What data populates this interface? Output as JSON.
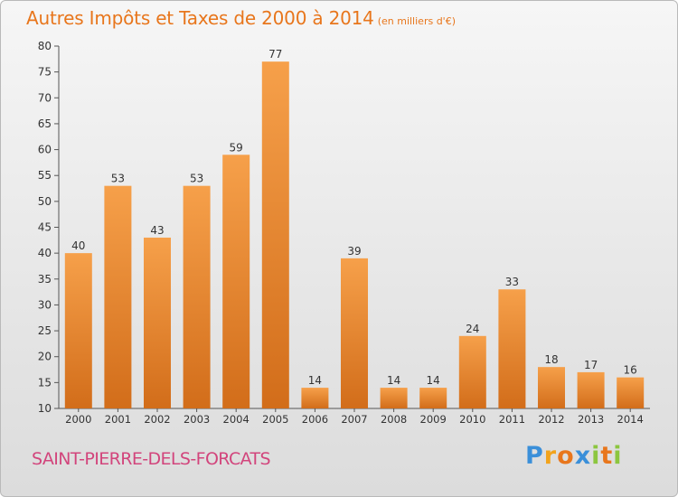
{
  "chart_data": {
    "type": "bar",
    "title": "Autres Impôts et Taxes de 2000 à 2014",
    "subtitle": "(en milliers d'€)",
    "categories": [
      "2000",
      "2001",
      "2002",
      "2003",
      "2004",
      "2005",
      "2006",
      "2007",
      "2008",
      "2009",
      "2010",
      "2011",
      "2012",
      "2013",
      "2014"
    ],
    "values": [
      40,
      53,
      43,
      53,
      59,
      77,
      14,
      39,
      14,
      14,
      24,
      33,
      18,
      17,
      16
    ],
    "ylim": [
      10,
      80
    ],
    "yticks": [
      10,
      15,
      20,
      25,
      30,
      35,
      40,
      45,
      50,
      55,
      60,
      65,
      70,
      75,
      80
    ],
    "grid": false,
    "bar_color": "#f0892a"
  },
  "commune": "SAINT-PIERRE-DELS-FORCATS",
  "logo": {
    "text": "Proxiti",
    "letters": [
      {
        "ch": "P",
        "color": "#3a8fd9"
      },
      {
        "ch": "r",
        "color": "#f2a31b"
      },
      {
        "ch": "o",
        "color": "#e8761c"
      },
      {
        "ch": "x",
        "color": "#3a8fd9"
      },
      {
        "ch": "i",
        "color": "#8cc63f"
      },
      {
        "ch": "t",
        "color": "#e8761c"
      },
      {
        "ch": "i",
        "color": "#8cc63f"
      }
    ]
  }
}
